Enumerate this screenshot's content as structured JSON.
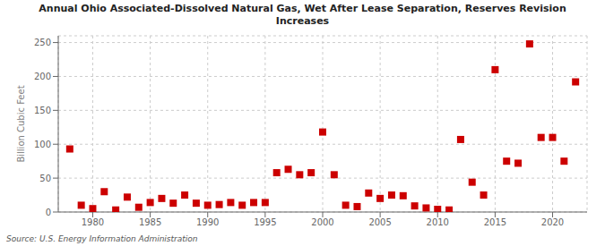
{
  "chart_data": {
    "type": "scatter",
    "title": "Annual Ohio Associated-Dissolved Natural Gas, Wet After Lease Separation, Reserves Revision\nIncreases",
    "ylabel": "Billion Cubic Feet",
    "source": "Source: U.S. Energy Information Administration",
    "x": [
      1978,
      1979,
      1980,
      1981,
      1982,
      1983,
      1984,
      1985,
      1986,
      1987,
      1988,
      1989,
      1990,
      1991,
      1992,
      1993,
      1994,
      1995,
      1996,
      1997,
      1998,
      1999,
      2000,
      2001,
      2002,
      2003,
      2004,
      2005,
      2006,
      2007,
      2008,
      2009,
      2010,
      2011,
      2012,
      2013,
      2014,
      2015,
      2016,
      2017,
      2018,
      2019,
      2020,
      2021,
      2022
    ],
    "values": [
      93,
      10,
      5,
      30,
      3,
      22,
      7,
      14,
      20,
      13,
      25,
      13,
      10,
      11,
      14,
      10,
      14,
      14,
      58,
      63,
      55,
      58,
      118,
      55,
      10,
      8,
      28,
      20,
      25,
      24,
      9,
      6,
      4,
      3,
      107,
      44,
      25,
      210,
      75,
      72,
      248,
      110,
      110,
      75,
      192
    ],
    "color": "#cc0000",
    "marker": "square",
    "xlim": [
      1977,
      2023
    ],
    "xticks": [
      1980,
      1985,
      1990,
      1995,
      2000,
      2005,
      2010,
      2015,
      2020
    ],
    "ylim": [
      0,
      260
    ],
    "yticks": [
      0,
      50,
      100,
      150,
      200,
      250
    ],
    "grid": true
  }
}
